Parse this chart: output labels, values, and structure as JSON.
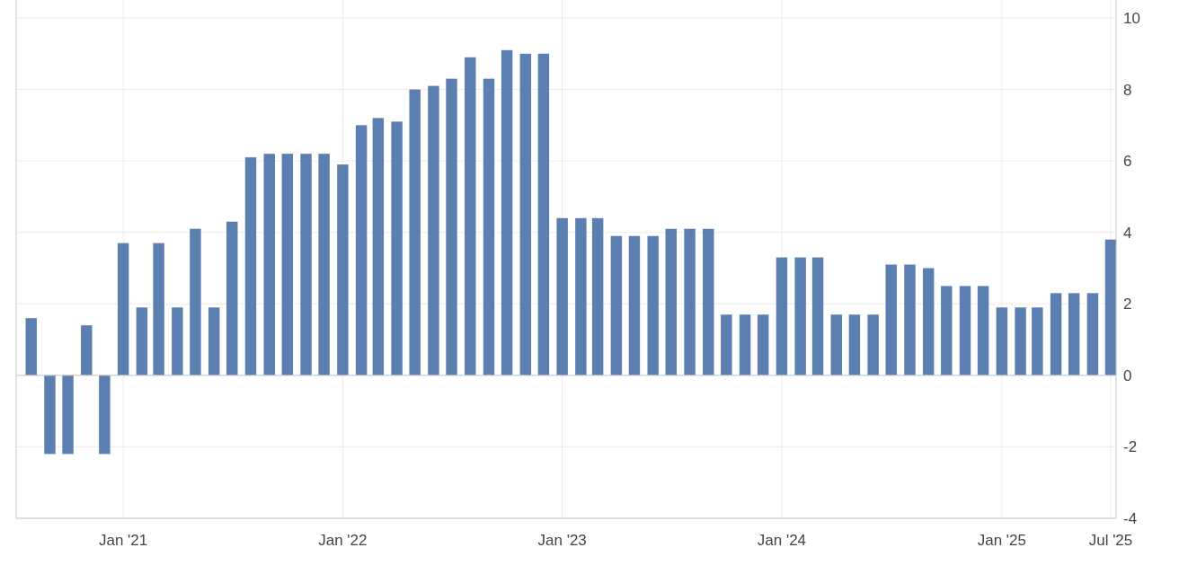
{
  "chart_data": {
    "type": "bar",
    "x": [
      "2020-08",
      "2020-09",
      "2020-10",
      "2020-11",
      "2020-12",
      "2021-01",
      "2021-02",
      "2021-03",
      "2021-04",
      "2021-05",
      "2021-06",
      "2021-07",
      "2021-08",
      "2021-09",
      "2021-10",
      "2021-11",
      "2021-12",
      "2022-01",
      "2022-02",
      "2022-03",
      "2022-04",
      "2022-05",
      "2022-06",
      "2022-07",
      "2022-08",
      "2022-09",
      "2022-10",
      "2022-11",
      "2022-12",
      "2023-01",
      "2023-02",
      "2023-03",
      "2023-04",
      "2023-05",
      "2023-06",
      "2023-07",
      "2023-08",
      "2023-09",
      "2023-10",
      "2023-11",
      "2023-12",
      "2024-01",
      "2024-02",
      "2024-03",
      "2024-04",
      "2024-05",
      "2024-06",
      "2024-07",
      "2024-08",
      "2024-09",
      "2024-10",
      "2024-11",
      "2024-12",
      "2025-01",
      "2025-02",
      "2025-03",
      "2025-04",
      "2025-05",
      "2025-06",
      "2025-07"
    ],
    "values": [
      1.6,
      -2.2,
      -2.2,
      1.4,
      -2.2,
      3.7,
      1.9,
      3.7,
      1.9,
      4.1,
      1.9,
      4.3,
      6.1,
      6.2,
      6.2,
      6.2,
      6.2,
      5.9,
      7.0,
      7.2,
      7.1,
      8.0,
      8.1,
      8.3,
      8.9,
      8.3,
      9.1,
      9.0,
      9.0,
      4.4,
      4.4,
      4.4,
      3.9,
      3.9,
      3.9,
      4.1,
      4.1,
      4.1,
      1.7,
      1.7,
      1.7,
      3.3,
      3.3,
      3.3,
      1.7,
      1.7,
      1.7,
      3.1,
      3.1,
      3.0,
      2.5,
      2.5,
      2.5,
      1.9,
      1.9,
      1.9,
      2.3,
      2.3,
      2.3,
      3.8
    ],
    "color": "#5a7fb0",
    "xlim": [
      "2020-07-07",
      "2025-07-10"
    ],
    "xticks": [
      {
        "value": "2021-01",
        "label": "Jan '21"
      },
      {
        "value": "2022-01",
        "label": "Jan '22"
      },
      {
        "value": "2023-01",
        "label": "Jan '23"
      },
      {
        "value": "2024-01",
        "label": "Jan '24"
      },
      {
        "value": "2025-01",
        "label": "Jan '25"
      },
      {
        "value": "2025-07",
        "label": "Jul '25"
      }
    ],
    "ylim": [
      -4,
      10
    ],
    "yticks": [
      -4,
      -2,
      0,
      2,
      4,
      6,
      8,
      10
    ],
    "grid": true
  }
}
